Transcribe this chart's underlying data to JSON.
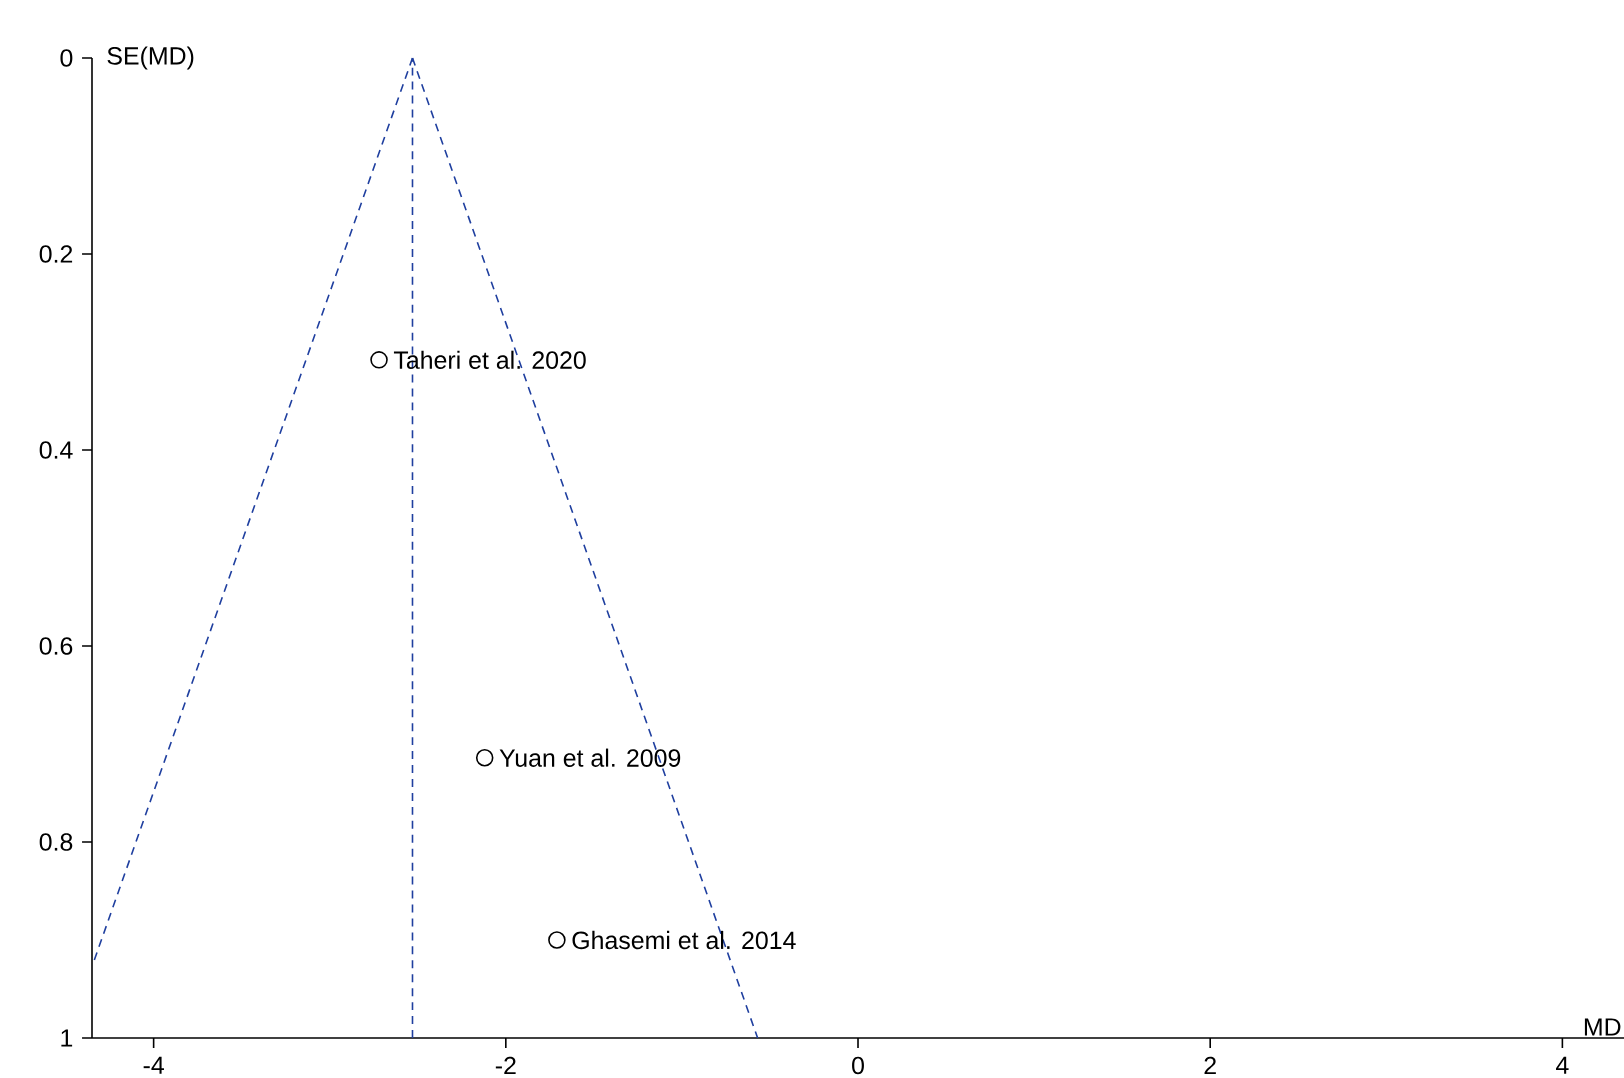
{
  "chart_data": {
    "type": "scatter",
    "xlabel": "MD",
    "ylabel": "SE(MD)",
    "xlim": [
      -4.35,
      4.35
    ],
    "ylim": [
      1,
      0
    ],
    "xticks": [
      -4,
      -2,
      0,
      2,
      4
    ],
    "yticks": [
      0,
      0.2,
      0.4,
      0.6,
      0.8,
      1
    ],
    "series": [
      {
        "color": "#000000",
        "marker": "circle",
        "x": [
          -2.72,
          -2.12,
          -1.71
        ],
        "values": [
          0.308,
          0.714,
          0.9
        ]
      },
      {
        "type": "line",
        "color": "#1f3f9f",
        "marker": "none",
        "line_style": "dashed",
        "x": [
          -2.53,
          -4.34
        ],
        "values": [
          0,
          0.922
        ]
      },
      {
        "type": "line",
        "color": "#1f3f9f",
        "marker": "none",
        "line_style": "dashed",
        "x": [
          -2.53,
          -0.57
        ],
        "values": [
          0,
          1
        ]
      }
    ],
    "ref_lines": [
      {
        "axis": "x",
        "value": -2.53,
        "color": "#1f3f9f",
        "line_style": "dashed"
      }
    ],
    "annotations": [
      {
        "text": "Taheri et al. 2020",
        "x": -2.72,
        "y": 0.308
      },
      {
        "text": "Yuan et al. 2009",
        "x": -2.12,
        "y": 0.714
      },
      {
        "text": "Ghasemi et al. 2014",
        "x": -1.71,
        "y": 0.9
      }
    ]
  }
}
